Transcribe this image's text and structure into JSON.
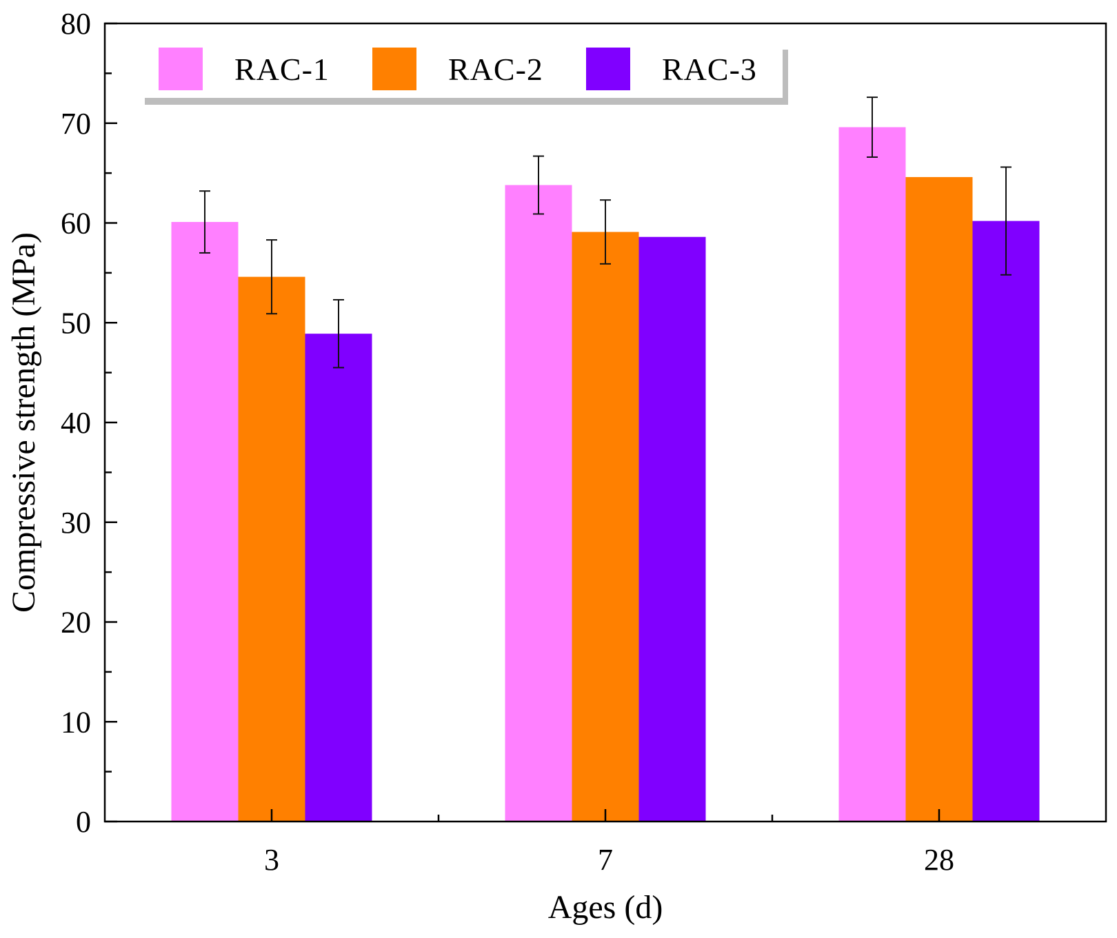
{
  "chart_data": {
    "type": "bar",
    "title": "",
    "xlabel": "Ages (d)",
    "ylabel": "Compressive strength (MPa)",
    "categories": [
      "3",
      "7",
      "28"
    ],
    "ylim": [
      0,
      80
    ],
    "yticks": [
      "0",
      "10",
      "20",
      "30",
      "40",
      "50",
      "60",
      "70",
      "80"
    ],
    "series": [
      {
        "name": "RAC-1",
        "color": "#ff80ff",
        "values": [
          60.1,
          63.8,
          69.6
        ],
        "errors": [
          3.1,
          2.9,
          3.0
        ]
      },
      {
        "name": "RAC-2",
        "color": "#ff8000",
        "values": [
          54.6,
          59.1,
          64.6
        ],
        "errors": [
          3.7,
          3.2,
          0
        ]
      },
      {
        "name": "RAC-3",
        "color": "#8000ff",
        "values": [
          48.9,
          58.6,
          60.2
        ],
        "errors": [
          3.4,
          0,
          5.4
        ]
      }
    ],
    "legend_position": "top-left",
    "grid": false
  }
}
